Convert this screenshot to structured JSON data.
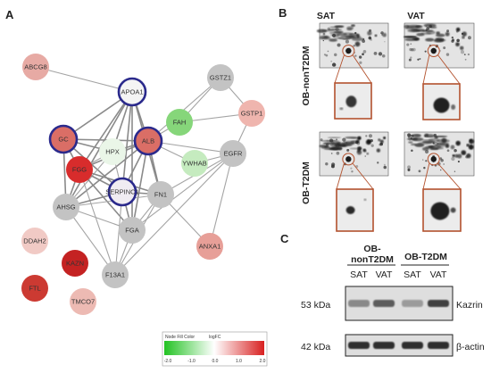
{
  "panel_labels": {
    "a": "A",
    "b": "B",
    "c": "C"
  },
  "network": {
    "nodes": [
      {
        "id": "ABCG8",
        "label": "ABCG8",
        "fill": "#e7aaa4",
        "ring": false
      },
      {
        "id": "APOA1",
        "label": "APOA1",
        "fill": "#f4f4f4",
        "ring": true
      },
      {
        "id": "FAH",
        "label": "FAH",
        "fill": "#86d67a",
        "ring": false
      },
      {
        "id": "GSTZ1",
        "label": "GSTZ1",
        "fill": "#c3c3c3",
        "ring": false
      },
      {
        "id": "GSTP1",
        "label": "GSTP1",
        "fill": "#efb5ae",
        "ring": false
      },
      {
        "id": "GC",
        "label": "GC",
        "fill": "#da6e66",
        "ring": true
      },
      {
        "id": "ALB",
        "label": "ALB",
        "fill": "#da6e66",
        "ring": true
      },
      {
        "id": "HPX",
        "label": "HPX",
        "fill": "#eaf6e8",
        "ring": false
      },
      {
        "id": "YWHAB",
        "label": "YWHAB",
        "fill": "#c5ebbf",
        "ring": false
      },
      {
        "id": "EGFR",
        "label": "EGFR",
        "fill": "#c3c3c3",
        "ring": false
      },
      {
        "id": "FGG",
        "label": "FGG",
        "fill": "#d82c2c",
        "ring": false
      },
      {
        "id": "SERPINC1",
        "label": "SERPINC1",
        "fill": "#f0ecf2",
        "ring": true
      },
      {
        "id": "FN1",
        "label": "FN1",
        "fill": "#c3c3c3",
        "ring": false
      },
      {
        "id": "AHSG",
        "label": "AHSG",
        "fill": "#c3c3c3",
        "ring": false
      },
      {
        "id": "FGA",
        "label": "FGA",
        "fill": "#c3c3c3",
        "ring": false
      },
      {
        "id": "DDAH2",
        "label": "DDAH2",
        "fill": "#f1cac5",
        "ring": false
      },
      {
        "id": "ANXA1",
        "label": "ANXA1",
        "fill": "#e79f98",
        "ring": false
      },
      {
        "id": "KAZN",
        "label": "KAZN",
        "fill": "#c42222",
        "ring": false
      },
      {
        "id": "F13A1",
        "label": "F13A1",
        "fill": "#c3c3c3",
        "ring": false
      },
      {
        "id": "FTL",
        "label": "FTL",
        "fill": "#cc3a32",
        "ring": false
      },
      {
        "id": "TMCO7",
        "label": "TMCO7",
        "fill": "#edbab3",
        "ring": false
      }
    ],
    "edges": [
      [
        "APOA1",
        "GC"
      ],
      [
        "APOA1",
        "ALB"
      ],
      [
        "APOA1",
        "HPX"
      ],
      [
        "APOA1",
        "FGG"
      ],
      [
        "APOA1",
        "SERPINC1"
      ],
      [
        "APOA1",
        "FN1"
      ],
      [
        "APOA1",
        "AHSG"
      ],
      [
        "APOA1",
        "FGA"
      ],
      [
        "GC",
        "ALB"
      ],
      [
        "GC",
        "HPX"
      ],
      [
        "GC",
        "FGG"
      ],
      [
        "GC",
        "SERPINC1"
      ],
      [
        "GC",
        "AHSG"
      ],
      [
        "ALB",
        "HPX"
      ],
      [
        "ALB",
        "FGG"
      ],
      [
        "ALB",
        "SERPINC1"
      ],
      [
        "ALB",
        "FN1"
      ],
      [
        "ALB",
        "AHSG"
      ],
      [
        "ALB",
        "FGA"
      ],
      [
        "ALB",
        "YWHAB"
      ],
      [
        "ALB",
        "EGFR"
      ],
      [
        "ALB",
        "FAH"
      ],
      [
        "HPX",
        "FGG"
      ],
      [
        "HPX",
        "SERPINC1"
      ],
      [
        "HPX",
        "AHSG"
      ],
      [
        "FGG",
        "SERPINC1"
      ],
      [
        "FGG",
        "FN1"
      ],
      [
        "FGG",
        "AHSG"
      ],
      [
        "FGG",
        "FGA"
      ],
      [
        "FGG",
        "F13A1"
      ],
      [
        "SERPINC1",
        "FN1"
      ],
      [
        "SERPINC1",
        "AHSG"
      ],
      [
        "SERPINC1",
        "FGA"
      ],
      [
        "SERPINC1",
        "F13A1"
      ],
      [
        "FN1",
        "AHSG"
      ],
      [
        "FN1",
        "FGA"
      ],
      [
        "FN1",
        "F13A1"
      ],
      [
        "FN1",
        "EGFR"
      ],
      [
        "FN1",
        "ANXA1"
      ],
      [
        "AHSG",
        "FGA"
      ],
      [
        "AHSG",
        "F13A1"
      ],
      [
        "FGA",
        "F13A1"
      ],
      [
        "FAH",
        "GSTZ1"
      ],
      [
        "FAH",
        "GSTP1"
      ],
      [
        "GSTZ1",
        "GSTP1"
      ],
      [
        "GSTZ1",
        "ALB"
      ],
      [
        "EGFR",
        "GSTP1"
      ],
      [
        "EGFR",
        "YWHAB"
      ],
      [
        "EGFR",
        "ANXA1"
      ],
      [
        "EGFR",
        "F13A1"
      ],
      [
        "EGFR",
        "FGA"
      ],
      [
        "ABCG8",
        "APOA1"
      ]
    ],
    "legend": {
      "title": "Node Fill Color",
      "subtitle": "logFC",
      "ticks": [
        "-2.0",
        "-1.0",
        "0.0",
        "1.0",
        "2.0"
      ],
      "colors": [
        "#22c222",
        "#ffffff",
        "#d82020"
      ]
    }
  },
  "gels": {
    "col_headers": [
      "SAT",
      "VAT"
    ],
    "row_labels": [
      "OB-nonT2DM",
      "OB-T2DM"
    ]
  },
  "western": {
    "groups": [
      "OB-\nnonT2DM",
      "OB-T2DM"
    ],
    "group_lines": [
      [
        "OB-",
        "nonT2DM"
      ],
      [
        "OB-T2DM"
      ]
    ],
    "lanes": [
      "SAT",
      "VAT",
      "SAT",
      "VAT"
    ],
    "rows": [
      {
        "mw": "53 kDa",
        "protein": "Kazrin",
        "intensity": [
          0.35,
          0.6,
          0.25,
          0.75
        ]
      },
      {
        "mw": "42 kDa",
        "protein": "β-actin",
        "intensity": [
          0.85,
          0.85,
          0.85,
          0.85
        ]
      }
    ]
  }
}
